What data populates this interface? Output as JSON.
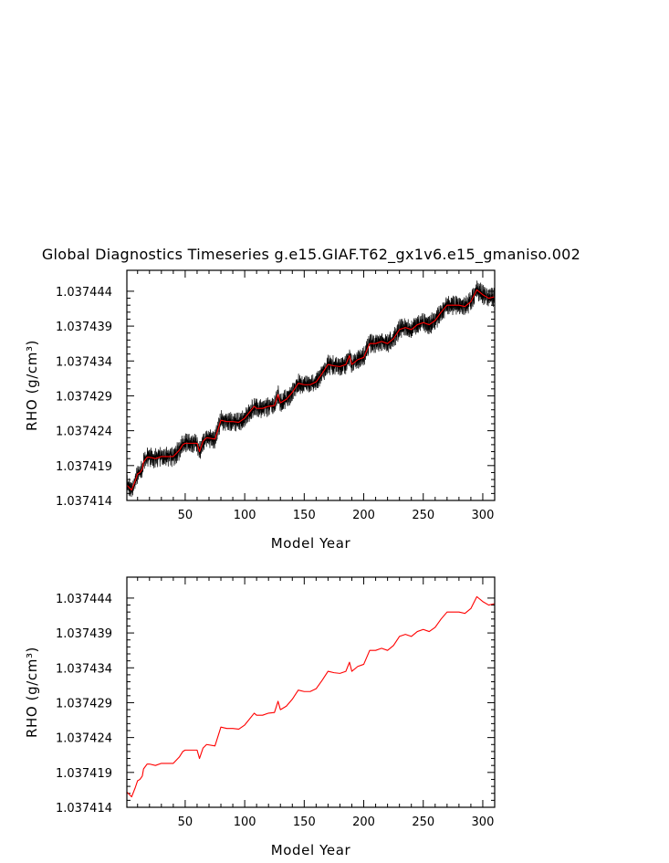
{
  "title": "Global Diagnostics Timeseries g.e15.GIAF.T62_gx1v6.e15_gmaniso.002",
  "colors": {
    "raw": "#000000",
    "smooth": "#ff0000",
    "frame": "#000000"
  },
  "chart_data": [
    {
      "type": "line",
      "xlabel": "Model Year",
      "ylabel": "RHO (g/cm³)",
      "xlim": [
        1,
        310
      ],
      "ylim": [
        1.037414,
        1.037447
      ],
      "x_ticks": [
        50,
        100,
        150,
        200,
        250,
        300
      ],
      "x_tick_labels": [
        "50",
        "100",
        "150",
        "200",
        "250",
        "300"
      ],
      "y_ticks": [
        1.037414,
        1.037419,
        1.037424,
        1.037429,
        1.037434,
        1.037439,
        1.037444
      ],
      "y_tick_labels": [
        "1.037414",
        "1.037419",
        "1.037424",
        "1.037429",
        "1.037434",
        "1.037439",
        "1.037444"
      ],
      "series_points_year": [
        1,
        5,
        8,
        10,
        12,
        14,
        15,
        18,
        20,
        25,
        30,
        40,
        45,
        48,
        50,
        55,
        60,
        62,
        65,
        68,
        75,
        80,
        85,
        90,
        95,
        100,
        108,
        110,
        115,
        120,
        125,
        128,
        130,
        135,
        140,
        145,
        150,
        155,
        160,
        165,
        170,
        175,
        180,
        185,
        188,
        190,
        195,
        200,
        205,
        210,
        215,
        220,
        225,
        230,
        235,
        240,
        245,
        250,
        255,
        260,
        265,
        270,
        275,
        280,
        285,
        290,
        295,
        300,
        305,
        310
      ],
      "series": [
        {
          "values": [
            1.0374162,
            1.0374155,
            1.0374168,
            1.0374178,
            1.037418,
            1.0374185,
            1.0374195,
            1.0374202,
            1.0374202,
            1.03742,
            1.0374203,
            1.0374203,
            1.0374212,
            1.037422,
            1.0374222,
            1.0374222,
            1.0374222,
            1.037421,
            1.0374225,
            1.037423,
            1.0374228,
            1.0374255,
            1.0374253,
            1.0374253,
            1.0374252,
            1.0374258,
            1.0374275,
            1.0374272,
            1.0374272,
            1.0374275,
            1.0374276,
            1.0374292,
            1.037428,
            1.0374285,
            1.0374295,
            1.0374308,
            1.0374306,
            1.0374306,
            1.037431,
            1.0374322,
            1.0374335,
            1.0374333,
            1.0374332,
            1.0374335,
            1.0374348,
            1.0374335,
            1.0374342,
            1.0374345,
            1.0374365,
            1.0374365,
            1.0374368,
            1.0374365,
            1.0374372,
            1.0374385,
            1.0374388,
            1.0374385,
            1.0374392,
            1.0374395,
            1.0374392,
            1.0374398,
            1.037441,
            1.037442,
            1.037442,
            1.037442,
            1.0374418,
            1.0374425,
            1.0374442,
            1.0374435,
            1.037443,
            1.0374432
          ]
        }
      ]
    },
    {
      "type": "line",
      "xlabel": "Model Year",
      "ylabel": "RHO (g/cm³)",
      "xlim": [
        1,
        310
      ],
      "ylim": [
        1.037414,
        1.037447
      ],
      "x_ticks": [
        50,
        100,
        150,
        200,
        250,
        300
      ],
      "x_tick_labels": [
        "50",
        "100",
        "150",
        "200",
        "250",
        "300"
      ],
      "y_ticks": [
        1.037414,
        1.037419,
        1.037424,
        1.037429,
        1.037434,
        1.037439,
        1.037444
      ],
      "y_tick_labels": [
        "1.037414",
        "1.037419",
        "1.037424",
        "1.037429",
        "1.037434",
        "1.037439",
        "1.037444"
      ],
      "series_points_year": [
        1,
        5,
        8,
        10,
        12,
        14,
        15,
        18,
        20,
        25,
        30,
        40,
        45,
        48,
        50,
        55,
        60,
        62,
        65,
        68,
        75,
        80,
        85,
        90,
        95,
        100,
        108,
        110,
        115,
        120,
        125,
        128,
        130,
        135,
        140,
        145,
        150,
        155,
        160,
        165,
        170,
        175,
        180,
        185,
        188,
        190,
        195,
        200,
        205,
        210,
        215,
        220,
        225,
        230,
        235,
        240,
        245,
        250,
        255,
        260,
        265,
        270,
        275,
        280,
        285,
        290,
        295,
        300,
        305,
        310
      ],
      "series": [
        {
          "values": [
            1.0374162,
            1.0374155,
            1.0374168,
            1.0374178,
            1.037418,
            1.0374185,
            1.0374195,
            1.0374202,
            1.0374202,
            1.03742,
            1.0374203,
            1.0374203,
            1.0374212,
            1.037422,
            1.0374222,
            1.0374222,
            1.0374222,
            1.037421,
            1.0374225,
            1.037423,
            1.0374228,
            1.0374255,
            1.0374253,
            1.0374253,
            1.0374252,
            1.0374258,
            1.0374275,
            1.0374272,
            1.0374272,
            1.0374275,
            1.0374276,
            1.0374292,
            1.037428,
            1.0374285,
            1.0374295,
            1.0374308,
            1.0374306,
            1.0374306,
            1.037431,
            1.0374322,
            1.0374335,
            1.0374333,
            1.0374332,
            1.0374335,
            1.0374348,
            1.0374335,
            1.0374342,
            1.0374345,
            1.0374365,
            1.0374365,
            1.0374368,
            1.0374365,
            1.0374372,
            1.0374385,
            1.0374388,
            1.0374385,
            1.0374392,
            1.0374395,
            1.0374392,
            1.0374398,
            1.037441,
            1.037442,
            1.037442,
            1.037442,
            1.0374418,
            1.0374425,
            1.0374442,
            1.0374435,
            1.037443,
            1.0374432
          ]
        }
      ]
    }
  ]
}
